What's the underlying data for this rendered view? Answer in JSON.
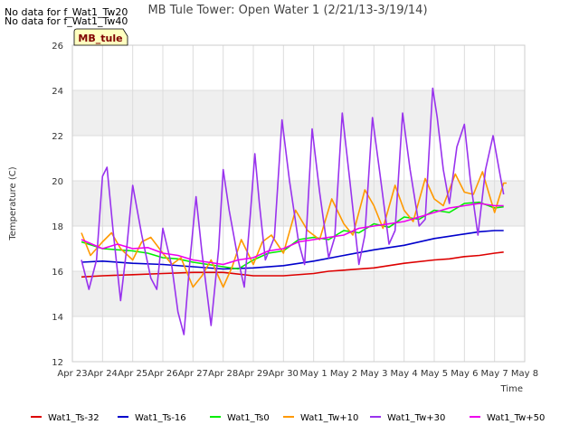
{
  "notices": [
    "No data for f_Wat1_Tw20",
    "No data for f_Wat1_Tw40"
  ],
  "site_label": "MB_tule",
  "chart_data": {
    "type": "line",
    "title": "MB Tule Tower: Open Water 1 (2/21/13-3/19/14)",
    "xlabel": "Time",
    "ylabel": "Temperature (C)",
    "ylim": [
      12,
      26
    ],
    "yticks": [
      12,
      14,
      16,
      18,
      20,
      22,
      24,
      26
    ],
    "xlim": [
      0,
      15
    ],
    "xticks": [
      {
        "x": 0,
        "label": "Apr 23"
      },
      {
        "x": 1,
        "label": "Apr 24"
      },
      {
        "x": 2,
        "label": "Apr 25"
      },
      {
        "x": 3,
        "label": "Apr 26"
      },
      {
        "x": 4,
        "label": "Apr 27"
      },
      {
        "x": 5,
        "label": "Apr 28"
      },
      {
        "x": 6,
        "label": "Apr 29"
      },
      {
        "x": 7,
        "label": "Apr 30"
      },
      {
        "x": 8,
        "label": "May 1"
      },
      {
        "x": 9,
        "label": "May 2"
      },
      {
        "x": 10,
        "label": "May 3"
      },
      {
        "x": 11,
        "label": "May 4"
      },
      {
        "x": 12,
        "label": "May 5"
      },
      {
        "x": 13,
        "label": "May 6"
      },
      {
        "x": 14,
        "label": "May 7"
      },
      {
        "x": 15,
        "label": "May 8"
      }
    ],
    "grid": true,
    "legend_position": "bottom",
    "series": [
      {
        "name": "Wat1_Ts-32",
        "color": "#dd0000",
        "points": [
          [
            0.3,
            15.75
          ],
          [
            1,
            15.8
          ],
          [
            2,
            15.85
          ],
          [
            3,
            15.9
          ],
          [
            4,
            15.95
          ],
          [
            5,
            15.95
          ],
          [
            6,
            15.8
          ],
          [
            7,
            15.8
          ],
          [
            8,
            15.9
          ],
          [
            8.5,
            16.0
          ],
          [
            9,
            16.05
          ],
          [
            10,
            16.15
          ],
          [
            11,
            16.35
          ],
          [
            12,
            16.5
          ],
          [
            12.5,
            16.55
          ],
          [
            13,
            16.65
          ],
          [
            13.5,
            16.7
          ],
          [
            14,
            16.8
          ],
          [
            14.3,
            16.85
          ]
        ]
      },
      {
        "name": "Wat1_Ts-16",
        "color": "#0000cc",
        "points": [
          [
            0.3,
            16.4
          ],
          [
            1,
            16.45
          ],
          [
            2,
            16.35
          ],
          [
            3,
            16.3
          ],
          [
            4,
            16.2
          ],
          [
            5,
            16.1
          ],
          [
            6,
            16.15
          ],
          [
            7,
            16.25
          ],
          [
            8,
            16.45
          ],
          [
            9,
            16.7
          ],
          [
            10,
            16.95
          ],
          [
            11,
            17.15
          ],
          [
            12,
            17.45
          ],
          [
            12.5,
            17.55
          ],
          [
            13,
            17.65
          ],
          [
            13.5,
            17.75
          ],
          [
            14,
            17.8
          ],
          [
            14.3,
            17.8
          ]
        ]
      },
      {
        "name": "Wat1_Ts0",
        "color": "#00ee00",
        "points": [
          [
            0.3,
            17.3
          ],
          [
            1,
            17.0
          ],
          [
            2,
            16.9
          ],
          [
            2.5,
            16.8
          ],
          [
            3,
            16.6
          ],
          [
            3.5,
            16.55
          ],
          [
            4,
            16.4
          ],
          [
            4.5,
            16.3
          ],
          [
            5,
            16.2
          ],
          [
            5.5,
            16.1
          ],
          [
            6,
            16.5
          ],
          [
            6.5,
            16.8
          ],
          [
            7,
            16.9
          ],
          [
            7.5,
            17.4
          ],
          [
            8,
            17.5
          ],
          [
            8.5,
            17.4
          ],
          [
            9,
            17.8
          ],
          [
            9.5,
            17.7
          ],
          [
            10,
            18.1
          ],
          [
            10.5,
            17.95
          ],
          [
            11,
            18.4
          ],
          [
            11.5,
            18.3
          ],
          [
            12,
            18.7
          ],
          [
            12.5,
            18.6
          ],
          [
            13,
            19.0
          ],
          [
            13.5,
            19.05
          ],
          [
            14,
            18.8
          ],
          [
            14.3,
            18.85
          ]
        ]
      },
      {
        "name": "Wat1_Tw+10",
        "color": "#ff9900",
        "points": [
          [
            0.3,
            17.7
          ],
          [
            0.6,
            16.7
          ],
          [
            1,
            17.3
          ],
          [
            1.3,
            17.7
          ],
          [
            1.6,
            17.0
          ],
          [
            2,
            16.5
          ],
          [
            2.3,
            17.3
          ],
          [
            2.6,
            17.5
          ],
          [
            3,
            16.8
          ],
          [
            3.3,
            16.3
          ],
          [
            3.6,
            16.6
          ],
          [
            4,
            15.3
          ],
          [
            4.3,
            15.8
          ],
          [
            4.6,
            16.5
          ],
          [
            5,
            15.3
          ],
          [
            5.3,
            16.2
          ],
          [
            5.6,
            17.4
          ],
          [
            6,
            16.3
          ],
          [
            6.3,
            17.3
          ],
          [
            6.6,
            17.6
          ],
          [
            7,
            16.8
          ],
          [
            7.4,
            18.7
          ],
          [
            7.8,
            17.8
          ],
          [
            8.2,
            17.4
          ],
          [
            8.6,
            19.2
          ],
          [
            9,
            18.1
          ],
          [
            9.3,
            17.6
          ],
          [
            9.7,
            19.6
          ],
          [
            10,
            18.9
          ],
          [
            10.3,
            17.9
          ],
          [
            10.7,
            19.8
          ],
          [
            11,
            18.7
          ],
          [
            11.3,
            18.2
          ],
          [
            11.7,
            20.1
          ],
          [
            12,
            19.2
          ],
          [
            12.3,
            18.9
          ],
          [
            12.7,
            20.3
          ],
          [
            13,
            19.5
          ],
          [
            13.3,
            19.4
          ],
          [
            13.6,
            20.4
          ],
          [
            14,
            18.6
          ],
          [
            14.3,
            19.9
          ],
          [
            14.4,
            19.9
          ]
        ]
      },
      {
        "name": "Wat1_Tw+30",
        "color": "#9933ee",
        "points": [
          [
            0.3,
            16.5
          ],
          [
            0.55,
            15.2
          ],
          [
            0.8,
            16.5
          ],
          [
            1,
            20.2
          ],
          [
            1.15,
            20.6
          ],
          [
            1.35,
            17.8
          ],
          [
            1.6,
            14.7
          ],
          [
            1.8,
            17.0
          ],
          [
            2,
            19.8
          ],
          [
            2.3,
            17.6
          ],
          [
            2.6,
            15.7
          ],
          [
            2.8,
            15.2
          ],
          [
            3,
            17.9
          ],
          [
            3.3,
            16.2
          ],
          [
            3.5,
            14.2
          ],
          [
            3.7,
            13.2
          ],
          [
            3.9,
            16.5
          ],
          [
            4.1,
            19.3
          ],
          [
            4.3,
            16.8
          ],
          [
            4.6,
            13.6
          ],
          [
            4.85,
            17.0
          ],
          [
            5.0,
            20.5
          ],
          [
            5.2,
            18.7
          ],
          [
            5.5,
            16.5
          ],
          [
            5.7,
            15.3
          ],
          [
            5.9,
            18.5
          ],
          [
            6.05,
            21.2
          ],
          [
            6.2,
            19.0
          ],
          [
            6.4,
            16.5
          ],
          [
            6.7,
            17.5
          ],
          [
            6.95,
            22.7
          ],
          [
            7.2,
            20.0
          ],
          [
            7.5,
            17.3
          ],
          [
            7.7,
            16.3
          ],
          [
            7.95,
            22.3
          ],
          [
            8.2,
            19.5
          ],
          [
            8.5,
            16.6
          ],
          [
            8.7,
            17.5
          ],
          [
            8.95,
            23.0
          ],
          [
            9.2,
            20.0
          ],
          [
            9.5,
            16.3
          ],
          [
            9.7,
            17.6
          ],
          [
            9.95,
            22.8
          ],
          [
            10.2,
            20.3
          ],
          [
            10.5,
            17.2
          ],
          [
            10.7,
            17.8
          ],
          [
            10.95,
            23.0
          ],
          [
            11.2,
            20.5
          ],
          [
            11.5,
            18.0
          ],
          [
            11.7,
            18.3
          ],
          [
            11.95,
            24.1
          ],
          [
            12.1,
            22.8
          ],
          [
            12.3,
            20.5
          ],
          [
            12.5,
            19.0
          ],
          [
            12.75,
            21.5
          ],
          [
            13.0,
            22.5
          ],
          [
            13.2,
            20.0
          ],
          [
            13.45,
            17.6
          ],
          [
            13.7,
            20.5
          ],
          [
            13.95,
            22.0
          ],
          [
            14.15,
            20.5
          ],
          [
            14.3,
            19.4
          ]
        ]
      },
      {
        "name": "Wat1_Tw+50",
        "color": "#ee00ee",
        "points": [
          [
            0.3,
            17.4
          ],
          [
            1,
            17.0
          ],
          [
            1.5,
            17.2
          ],
          [
            2,
            17.0
          ],
          [
            2.5,
            17.05
          ],
          [
            3,
            16.8
          ],
          [
            3.5,
            16.7
          ],
          [
            4,
            16.5
          ],
          [
            4.5,
            16.4
          ],
          [
            5,
            16.3
          ],
          [
            5.5,
            16.5
          ],
          [
            6,
            16.6
          ],
          [
            6.5,
            16.9
          ],
          [
            7,
            17.0
          ],
          [
            7.5,
            17.3
          ],
          [
            8,
            17.4
          ],
          [
            8.5,
            17.5
          ],
          [
            9,
            17.6
          ],
          [
            9.5,
            17.9
          ],
          [
            10,
            18.0
          ],
          [
            10.5,
            18.1
          ],
          [
            11,
            18.2
          ],
          [
            11.5,
            18.4
          ],
          [
            12,
            18.6
          ],
          [
            12.5,
            18.8
          ],
          [
            13,
            18.9
          ],
          [
            13.5,
            19.0
          ],
          [
            14,
            18.9
          ],
          [
            14.3,
            18.9
          ]
        ]
      }
    ]
  }
}
